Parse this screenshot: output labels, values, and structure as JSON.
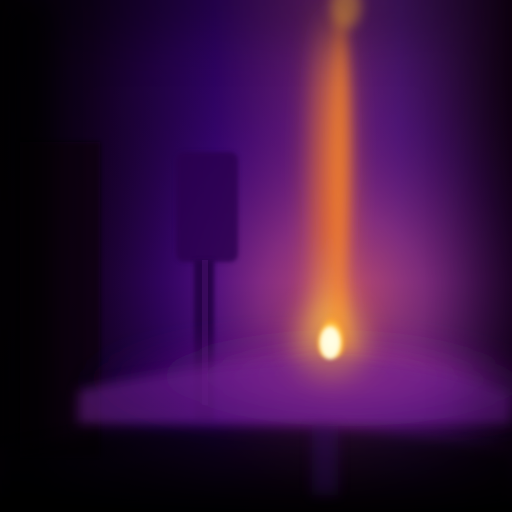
{
  "image": {
    "type": "thermal-camera-frame",
    "palette": {
      "cold": "#050006",
      "deep_purple": "#28005c",
      "purple": "#4b0a7f",
      "violet": "#6f1b92",
      "magenta": "#a53f84",
      "orange": "#ee7a27",
      "yellow": "#fff39a",
      "white_hot": "#ffffe8"
    },
    "objects": [
      "thermal-background",
      "left-dark-doorway",
      "post-sign",
      "heat-plume",
      "flame-hotspot",
      "ground-glow",
      "floor-shadow"
    ]
  }
}
